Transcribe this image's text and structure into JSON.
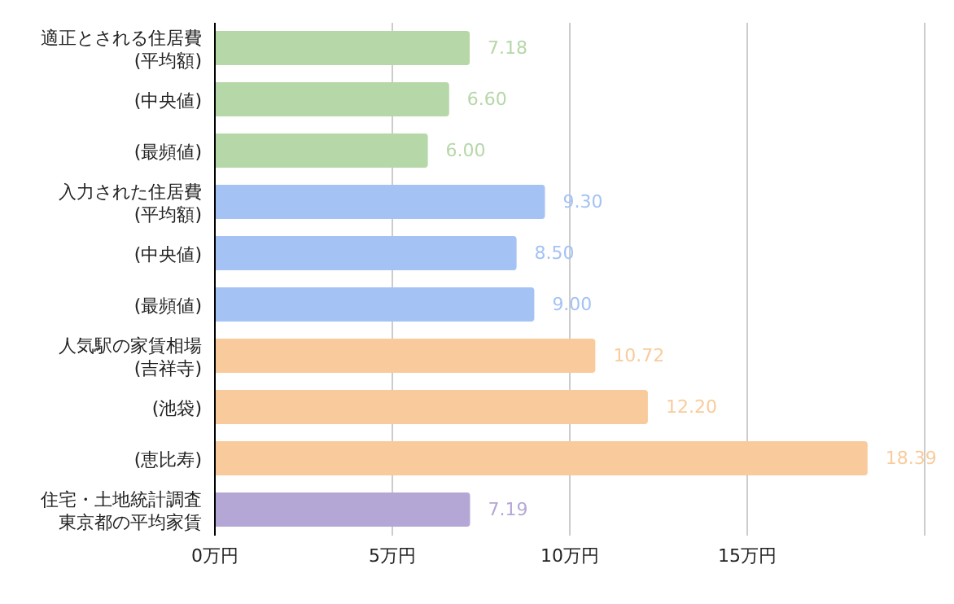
{
  "chart_data": {
    "type": "bar",
    "orientation": "horizontal",
    "categories": [
      "適正とされる住居費(平均額)",
      "(中央値)",
      "(最頻値)",
      "入力された住居費(平均額)",
      "(中央値)",
      "(最頻値)",
      "人気駅の家賃相場(吉祥寺)",
      "(池袋)",
      "(恵比寿)",
      "住宅・土地統計調査東京都の平均家賃"
    ],
    "values": [
      7.18,
      6.6,
      6.0,
      9.3,
      8.5,
      9.0,
      10.72,
      12.2,
      18.39,
      7.19
    ],
    "value_labels": [
      "7.18",
      "6.60",
      "6.00",
      "9.30",
      "8.50",
      "9.00",
      "10.72",
      "12.20",
      "18.39",
      "7.19"
    ],
    "colors": [
      "#b6d7a8",
      "#b6d7a8",
      "#b6d7a8",
      "#a4c2f4",
      "#a4c2f4",
      "#a4c2f4",
      "#f9cb9c",
      "#f9cb9c",
      "#f9cb9c",
      "#b4a7d6"
    ],
    "xlim": [
      0,
      20
    ],
    "xticks": [
      {
        "value": 0,
        "label": "0万円"
      },
      {
        "value": 5,
        "label": "5万円"
      },
      {
        "value": 10,
        "label": "10万円"
      },
      {
        "value": 15,
        "label": "15万円"
      },
      {
        "value": 20,
        "label": null
      }
    ],
    "grid": "x",
    "legend": false
  }
}
